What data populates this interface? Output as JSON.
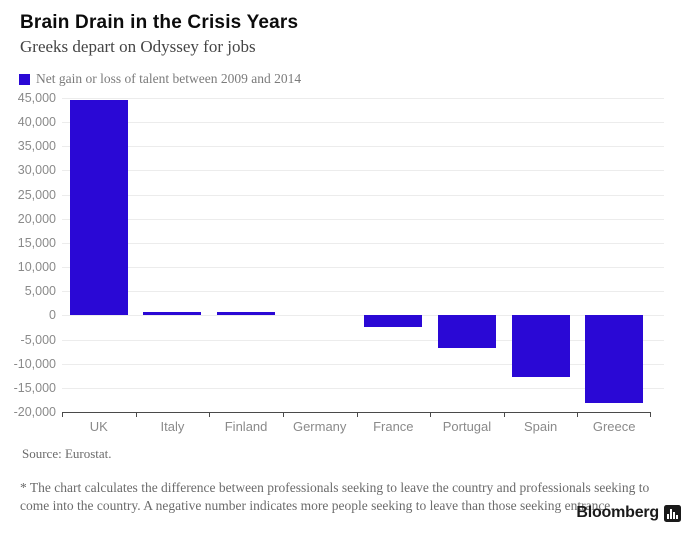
{
  "header": {
    "title": "Brain Drain in the Crisis Years",
    "subtitle": "Greeks depart on Odyssey for jobs"
  },
  "legend": {
    "label": "Net gain or loss of talent between 2009 and 2014",
    "swatch_color": "#2a08d5"
  },
  "chart_data": {
    "type": "bar",
    "title": "Net gain or loss of talent between 2009 and 2014",
    "categories": [
      "UK",
      "Italy",
      "Finland",
      "Germany",
      "France",
      "Portugal",
      "Spain",
      "Greece"
    ],
    "values": [
      44500,
      700,
      700,
      0,
      -2500,
      -6800,
      -12800,
      -18100
    ],
    "xlabel": "",
    "ylabel": "",
    "ylim": [
      -20000,
      45000
    ],
    "ytick_step": 5000,
    "yticks": [
      {
        "value": 45000,
        "label": "45,000"
      },
      {
        "value": 40000,
        "label": "40,000"
      },
      {
        "value": 35000,
        "label": "35,000"
      },
      {
        "value": 30000,
        "label": "30,000"
      },
      {
        "value": 25000,
        "label": "25,000"
      },
      {
        "value": 20000,
        "label": "20,000"
      },
      {
        "value": 15000,
        "label": "15,000"
      },
      {
        "value": 10000,
        "label": "10,000"
      },
      {
        "value": 5000,
        "label": "5,000"
      },
      {
        "value": 0,
        "label": "0"
      },
      {
        "value": -5000,
        "label": "-5,000"
      },
      {
        "value": -10000,
        "label": "-10,000"
      },
      {
        "value": -15000,
        "label": "-15,000"
      },
      {
        "value": -20000,
        "label": "-20,000"
      }
    ],
    "bar_color": "#2a08d5",
    "grid": true,
    "legend_position": "top-left"
  },
  "footer": {
    "source": "Source: Eurostat.",
    "footnote": "* The chart calculates the difference between professionals seeking to leave the country and professionals seeking to come into the country. A negative number indicates more people seeking to leave than those seeking entrance.",
    "brand": "Bloomberg",
    "brand_icon": "bar-chart-icon"
  }
}
